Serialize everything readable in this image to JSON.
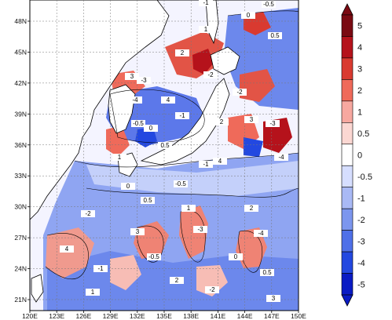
{
  "map": {
    "lon_ticks": [
      "120E",
      "123E",
      "126E",
      "129E",
      "132E",
      "135E",
      "138E",
      "141E",
      "144E",
      "147E",
      "150E"
    ],
    "lat_ticks": [
      "48N",
      "45N",
      "42N",
      "39N",
      "36N",
      "33N",
      "30N",
      "27N",
      "24N",
      "21N"
    ],
    "contour_labels": [
      "-1",
      "-0.5",
      "0",
      "0.5",
      "1",
      "2",
      "-2",
      "3",
      "-3",
      "-4",
      "4"
    ]
  },
  "colorbar": {
    "labels": [
      "5",
      "4",
      "3",
      "2",
      "1",
      "0.5",
      "0",
      "-0.5",
      "-1",
      "-2",
      "-3",
      "-4",
      "-5"
    ],
    "colors": [
      "#7a0a12",
      "#b5121b",
      "#d93a30",
      "#ef6a5a",
      "#f7a8a0",
      "#fbd7d2",
      "#ffffff",
      "#d6deff",
      "#a9b9f5",
      "#7c96ee",
      "#4f70e8",
      "#2348e0",
      "#0a1bc4"
    ]
  }
}
